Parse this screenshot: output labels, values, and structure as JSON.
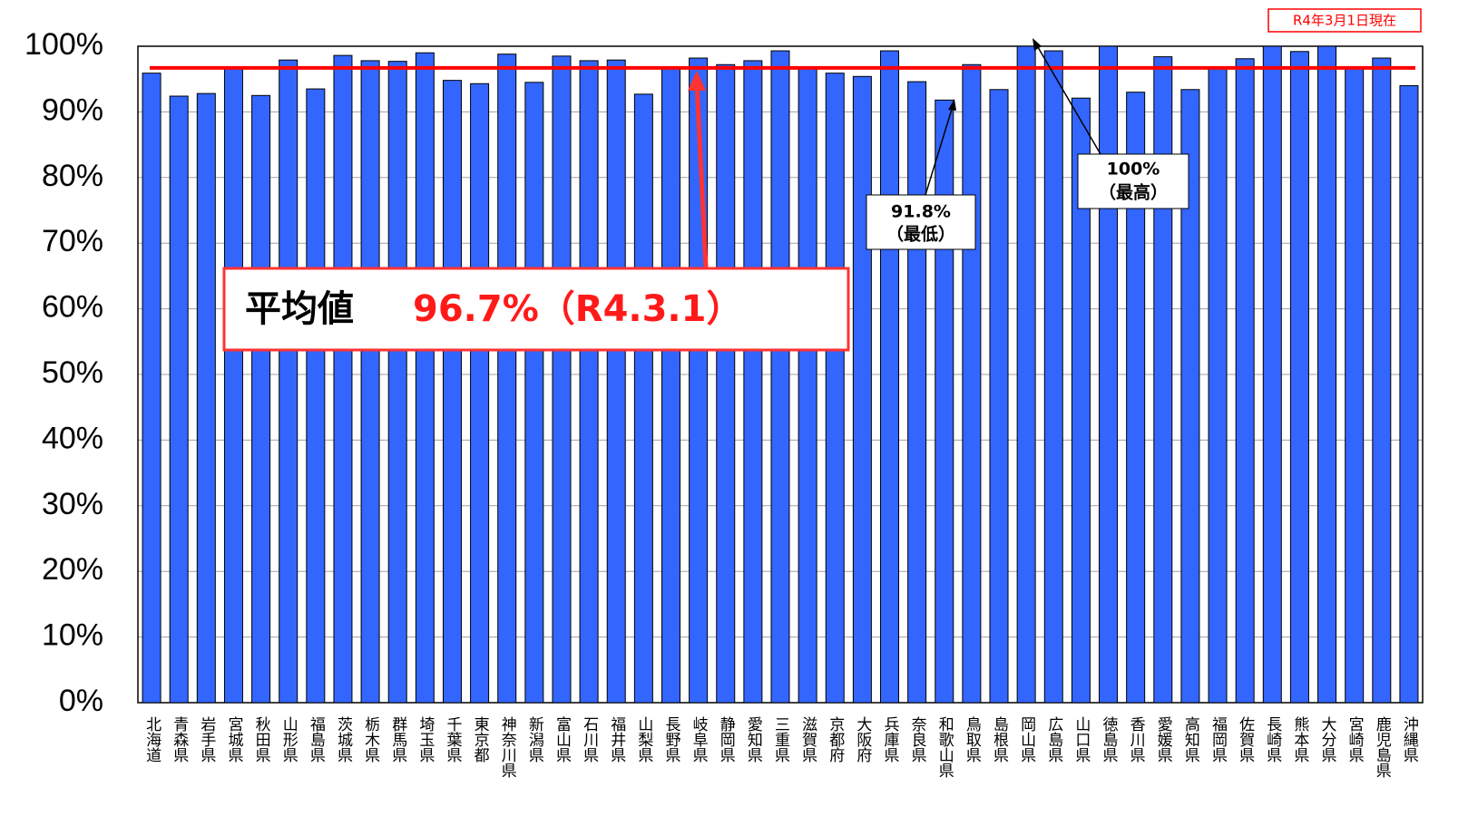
{
  "chart_data": {
    "type": "bar",
    "note": "R4年3月1日現在",
    "categories": [
      "北海道",
      "青森県",
      "岩手県",
      "宮城県",
      "秋田県",
      "山形県",
      "福島県",
      "茨城県",
      "栃木県",
      "群馬県",
      "埼玉県",
      "千葉県",
      "東京都",
      "神奈川県",
      "新潟県",
      "富山県",
      "石川県",
      "福井県",
      "山梨県",
      "長野県",
      "岐阜県",
      "静岡県",
      "愛知県",
      "三重県",
      "滋賀県",
      "京都府",
      "大阪府",
      "兵庫県",
      "奈良県",
      "和歌山県",
      "鳥取県",
      "島根県",
      "岡山県",
      "広島県",
      "山口県",
      "徳島県",
      "香川県",
      "愛媛県",
      "高知県",
      "福岡県",
      "佐賀県",
      "長崎県",
      "熊本県",
      "大分県",
      "宮崎県",
      "鹿児島県",
      "沖縄県"
    ],
    "values": [
      95.9,
      92.4,
      92.8,
      96.8,
      92.5,
      97.9,
      93.5,
      98.6,
      97.8,
      97.7,
      99.0,
      94.8,
      94.3,
      98.8,
      94.5,
      98.5,
      97.8,
      97.9,
      92.7,
      96.8,
      98.2,
      97.2,
      97.8,
      99.3,
      96.8,
      95.9,
      95.4,
      99.3,
      94.6,
      91.8,
      97.2,
      93.4,
      100,
      99.3,
      92.1,
      100,
      93.0,
      98.4,
      93.4,
      96.8,
      98.1,
      100,
      99.2,
      100,
      96.8,
      98.2,
      94.0
    ],
    "color": "#3366ff",
    "ylim": [
      0,
      100
    ],
    "yticks": [
      {
        "value": 0,
        "label": "0%"
      },
      {
        "value": 10,
        "label": "10%"
      },
      {
        "value": 20,
        "label": "20%"
      },
      {
        "value": 30,
        "label": "30%"
      },
      {
        "value": 40,
        "label": "40%"
      },
      {
        "value": 50,
        "label": "50%"
      },
      {
        "value": 60,
        "label": "60%"
      },
      {
        "value": 70,
        "label": "70%"
      },
      {
        "value": 80,
        "label": "80%"
      },
      {
        "value": 90,
        "label": "90%"
      },
      {
        "value": 100,
        "label": "100%"
      }
    ],
    "grid": true,
    "average_line": {
      "value": 96.7,
      "color": "#ff0000"
    },
    "average_label": "平均値",
    "average_value_label": "96.7%（R4.3.1）",
    "min_annotation": [
      "91.8%",
      "（最低）"
    ],
    "max_annotation": [
      "100%",
      "（最高）"
    ]
  }
}
